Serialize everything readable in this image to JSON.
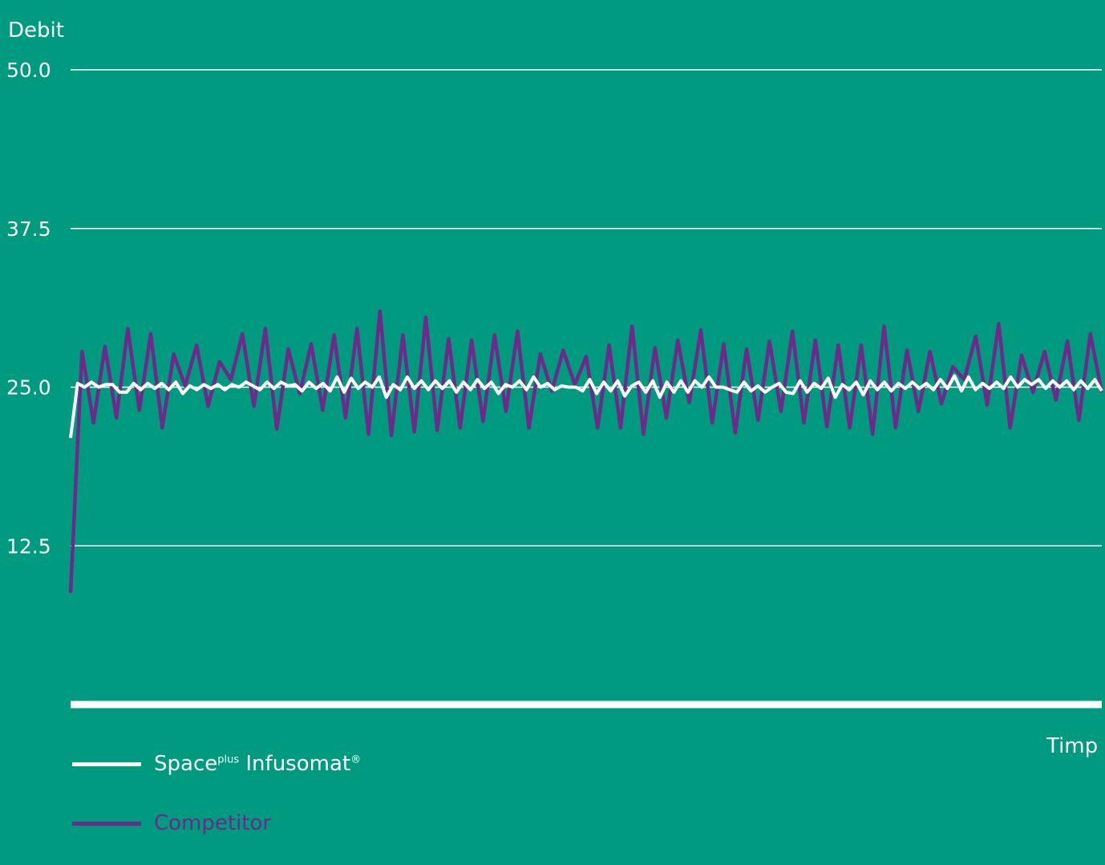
{
  "chart_data": {
    "type": "line",
    "ylabel": "Debit",
    "xlabel": "Timp",
    "ylim": [
      0,
      50
    ],
    "yticks": [
      "50.0",
      "37.5",
      "25.0",
      "12.5"
    ],
    "ytick_values": [
      50,
      37.5,
      25,
      12.5
    ],
    "grid": true,
    "legend_position": "bottom-left",
    "series": [
      {
        "name_base": "Space",
        "name_sup": "plus",
        "name_rest": "Infusomat",
        "name_mark": "®",
        "color": "#ffffff",
        "values": [
          21,
          25.3,
          25.0,
          25.4,
          25.0,
          25.2,
          25.2,
          24.6,
          24.6,
          25.3,
          24.8,
          25.3,
          24.9,
          25.3,
          24.8,
          25.4,
          24.5,
          25.1,
          24.8,
          25.2,
          24.9,
          25.2,
          24.8,
          25.2,
          25.0,
          25.4,
          25.1,
          24.8,
          25.4,
          24.9,
          25.4,
          25.1,
          25.2,
          24.7,
          25.4,
          24.9,
          25.3,
          24.7,
          25.8,
          24.6,
          25.7,
          24.9,
          25.4,
          25.0,
          25.8,
          24.2,
          25.2,
          24.8,
          25.8,
          24.9,
          25.5,
          24.8,
          25.5,
          24.9,
          25.5,
          24.6,
          25.4,
          24.8,
          25.6,
          24.9,
          25.4,
          24.5,
          25.2,
          25.0,
          25.5,
          24.8,
          25.8,
          25.0,
          25.3,
          24.8,
          25.1,
          25.0,
          25.0,
          24.7,
          25.6,
          24.5,
          25.4,
          24.7,
          25.5,
          24.3,
          25.1,
          25.4,
          24.6,
          25.5,
          24.2,
          25.4,
          24.6,
          25.5,
          24.6,
          25.5,
          25.0,
          25.8,
          25.0,
          25.0,
          24.8,
          24.6,
          25.4,
          24.7,
          25.1,
          24.6,
          25.0,
          25.3,
          24.6,
          24.5,
          25.5,
          24.6,
          25.3,
          24.9,
          25.7,
          24.2,
          25.2,
          24.8,
          25.4,
          24.4,
          25.5,
          24.8,
          25.4,
          24.7,
          25.3,
          24.9,
          25.4,
          24.9,
          25.3,
          24.8,
          25.6,
          24.9,
          25.9,
          24.7,
          25.8,
          24.8,
          25.3,
          24.9,
          25.4,
          24.9,
          25.8,
          25.0,
          25.6,
          25.2,
          25.6,
          24.9,
          25.5,
          25.0,
          25.5,
          24.8,
          25.5,
          24.9,
          25.6,
          24.7
        ],
        "x_start": 0
      },
      {
        "name": "Competitor",
        "color": "#6e2a8a",
        "values": [
          8.8,
          27.8,
          22.2,
          28.2,
          22.6,
          29.6,
          23.2,
          29.2,
          21.8,
          27.6,
          25.1,
          28.3,
          23.5,
          27.0,
          25.6,
          29.2,
          23.5,
          29.6,
          21.7,
          28.0,
          24.5,
          28.4,
          23.2,
          29.1,
          22.6,
          29.6,
          21.3,
          31.0,
          21.2,
          29.1,
          21.5,
          30.5,
          21.6,
          28.8,
          21.8,
          28.7,
          22.3,
          29.1,
          23.1,
          29.4,
          21.8,
          27.6,
          24.7,
          27.9,
          25.2,
          27.4,
          21.8,
          28.3,
          21.8,
          29.8,
          21.3,
          28.1,
          22.6,
          28.7,
          23.8,
          29.5,
          22.2,
          28.4,
          21.4,
          28.0,
          22.4,
          28.6,
          23.1,
          29.4,
          22.2,
          28.7,
          21.9,
          28.3,
          21.8,
          28.3,
          21.3,
          29.8,
          21.8,
          27.9,
          23.1,
          27.8,
          23.7,
          26.6,
          25.6,
          29.0,
          23.6,
          30.0,
          21.8,
          27.5,
          24.6,
          27.8,
          24.0,
          28.6,
          22.4,
          29.2,
          24.6
        ],
        "x_start": 0
      }
    ]
  }
}
